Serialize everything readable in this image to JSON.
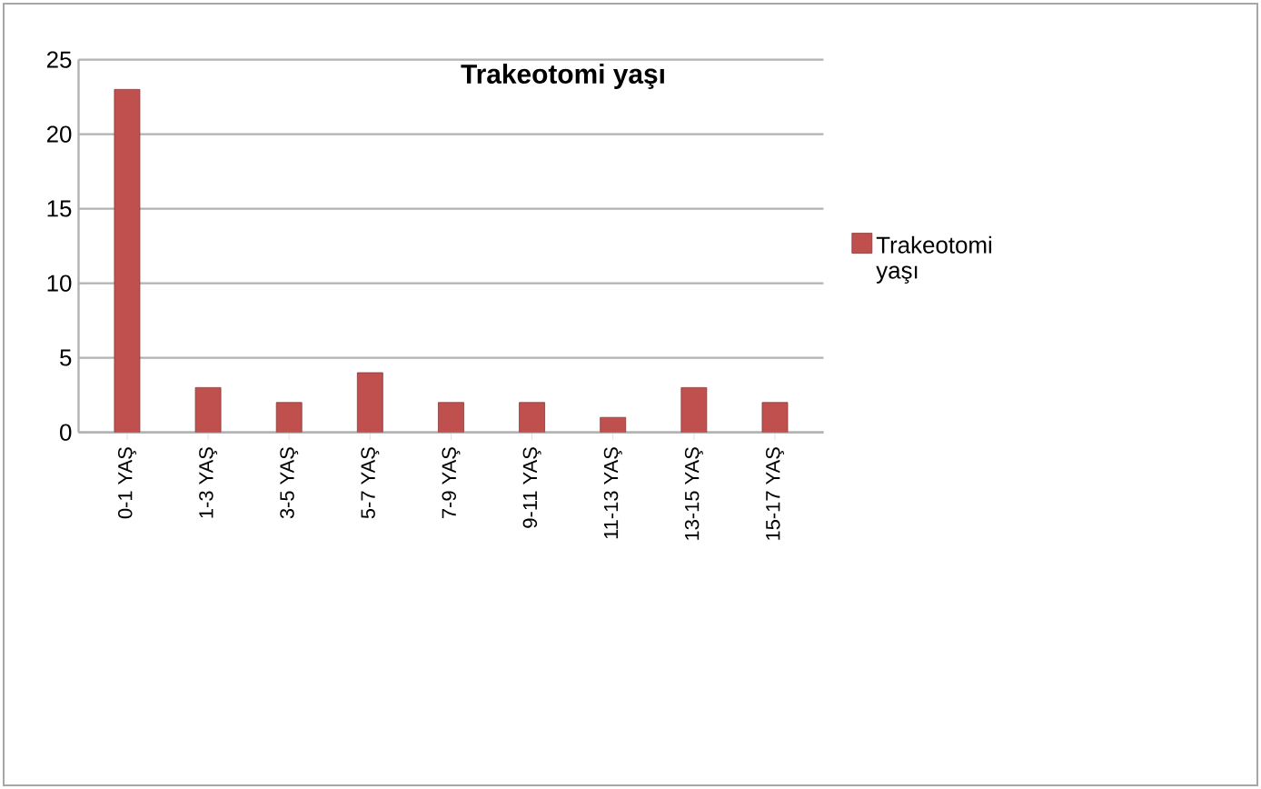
{
  "chart_data": {
    "type": "bar",
    "title": "Trakeotomi yaşı",
    "categories": [
      "0-1 YAŞ",
      "1-3 YAŞ",
      "3-5 YAŞ",
      "5-7 YAŞ",
      "7-9 YAŞ",
      "9-11 YAŞ",
      "11-13 YAŞ",
      "13-15 YAŞ",
      "15-17 YAŞ"
    ],
    "series": [
      {
        "name": "Trakeotomi yaşı",
        "color": "#c0504d",
        "values": [
          23,
          3,
          2,
          4,
          2,
          2,
          1,
          3,
          2
        ]
      }
    ],
    "ylim": [
      0,
      25
    ],
    "yticks": [
      0,
      5,
      10,
      15,
      20,
      25
    ],
    "grid": "y",
    "legend": "right"
  }
}
